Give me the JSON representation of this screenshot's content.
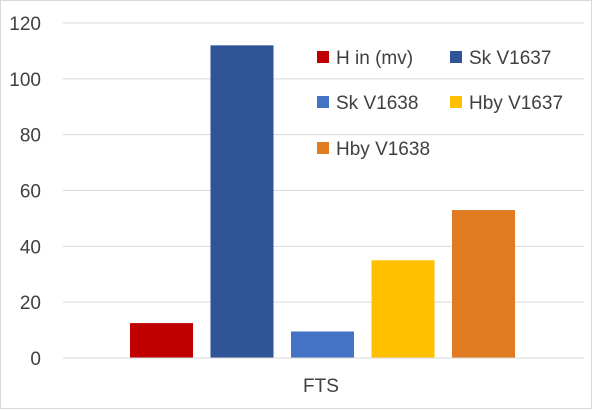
{
  "chart_data": {
    "type": "bar",
    "categories": [
      "FTS"
    ],
    "series": [
      {
        "name": "H in (mv)",
        "values": [
          12.5
        ],
        "color": "#c00000"
      },
      {
        "name": "Sk V1637",
        "values": [
          112
        ],
        "color": "#2f5597"
      },
      {
        "name": "Sk V1638",
        "values": [
          9.5
        ],
        "color": "#4472c4"
      },
      {
        "name": "Hby V1637",
        "values": [
          35
        ],
        "color": "#ffc000"
      },
      {
        "name": "Hby V1638",
        "values": [
          53
        ],
        "color": "#e07b22"
      }
    ],
    "title": "",
    "xlabel": "",
    "ylabel": "",
    "ylim": [
      0,
      120
    ],
    "yticks": [
      "0",
      "20",
      "40",
      "60",
      "80",
      "100",
      "120"
    ],
    "grid": true,
    "legend_position": "top-right"
  }
}
